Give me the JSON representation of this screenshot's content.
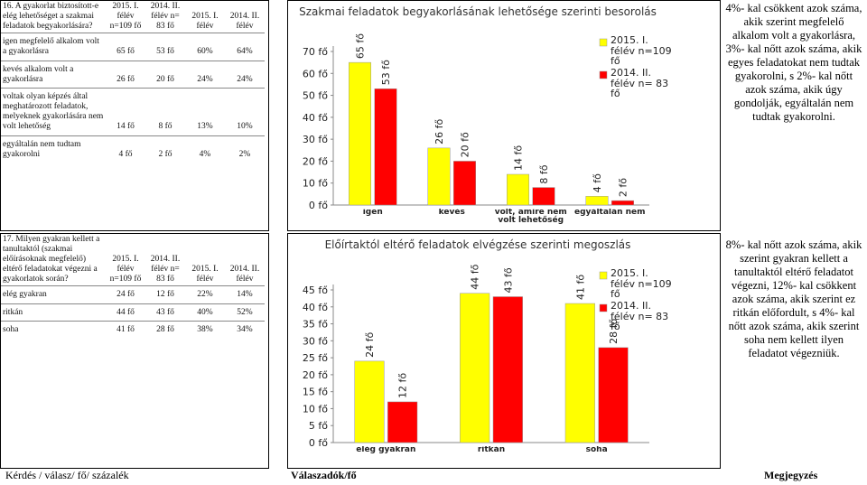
{
  "sections": [
    {
      "table": {
        "header": [
          "16. A gyakorlat biztosított-e elég lehetőséget a szakmai feladatok begyakorlására?",
          "2015. I. félév n=109 fő",
          "2014. II. félév n= 83 fő",
          "2015. I. félév",
          "2014. II. félév"
        ],
        "rows": [
          [
            "igen megfelelő alkalom volt a gyakorlásra",
            "65 fő",
            "53 fő",
            "60%",
            "64%"
          ],
          [
            "kevés alkalom volt a gyakorlásra",
            "26 fő",
            "20 fő",
            "24%",
            "24%"
          ],
          [
            "voltak olyan képzés által meghatározott feladatok, melyeknek gyakorlására nem volt lehetőség",
            "14 fő",
            "8 fő",
            "13%",
            "10%"
          ],
          [
            "egyáltalán nem tudtam gyakorolni",
            "4 fő",
            "2 fő",
            "4%",
            "2%"
          ]
        ]
      },
      "note": "4%- kal csökkent azok száma, akik szerint megfelelő alkalom volt a gyakorlásra, 3%- kal nőtt azok száma, akik egyes feladatokat nem tudtak gyakorolni, s 2%- kal nőtt azok száma, akik úgy gondolják, egyáltalán nem tudtak gyakorolni."
    },
    {
      "table": {
        "header": [
          "17. Milyen gyakran kellett a tanultaktól (szakmai előírásoknak megfelelő) eltérő feladatokat végezni a gyakorlatok során?",
          "2015. I. félév n=109 fő",
          "2014. II. félév n= 83 fő",
          "2015. I. félév",
          "2014. II. félév"
        ],
        "rows": [
          [
            "elég gyakran",
            "24 fő",
            "12 fő",
            "22%",
            "14%"
          ],
          [
            "ritkán",
            "44 fő",
            "43 fő",
            "40%",
            "52%"
          ],
          [
            "soha",
            "41 fő",
            "28 fő",
            "38%",
            "34%"
          ]
        ]
      },
      "note": "8%- kal nőtt azok száma, akik szerint gyakran kellett a tanultaktól eltérő feladatot végezni, 12%- kal csökkent azok száma, akik szerint ez ritkán előfordult, s 4%- kal nőtt azok száma, akik szerint soha nem kellett ilyen feladatot végezniük."
    }
  ],
  "chart_data": [
    {
      "type": "bar",
      "title": "Szakmai feladatok begyakorlásának lehetősége szerinti besorolás",
      "categories": [
        "igen",
        "kevés",
        "volt, amire nem volt lehetőség",
        "egyáltalán nem"
      ],
      "series": [
        {
          "name": "2015. I. félév n=109 fő",
          "color": "#ffff00",
          "values": [
            65,
            26,
            14,
            4
          ],
          "value_labels": [
            "65 fő",
            "26 fő",
            "14 fő",
            "4 fő"
          ]
        },
        {
          "name": "2014. II. félév n= 83 fő",
          "color": "#ff0000",
          "values": [
            53,
            20,
            8,
            2
          ],
          "value_labels": [
            "53 fő",
            "20 fő",
            "8 fő",
            "2 fő"
          ]
        }
      ],
      "ylim": [
        0,
        70
      ],
      "yticks": [
        {
          "value": 0,
          "label": "0 fő"
        },
        {
          "value": 10,
          "label": "10 fő"
        },
        {
          "value": 20,
          "label": "20 fő"
        },
        {
          "value": 30,
          "label": "30 fő"
        },
        {
          "value": 40,
          "label": "40 fő"
        },
        {
          "value": 50,
          "label": "50 fő"
        },
        {
          "value": 60,
          "label": "60 fő"
        },
        {
          "value": 70,
          "label": "70 fő"
        }
      ],
      "legend": "upper right"
    },
    {
      "type": "bar",
      "title": "Előírtaktól eltérő feladatok elvégzése szerinti megoszlás",
      "categories": [
        "elég gyakran",
        "ritkán",
        "soha"
      ],
      "series": [
        {
          "name": "2015. I. félév n=109 fő",
          "color": "#ffff00",
          "values": [
            24,
            44,
            41
          ],
          "value_labels": [
            "24 fő",
            "44 fő",
            "41 fő"
          ]
        },
        {
          "name": "2014. II. félév n= 83 fő",
          "color": "#ff0000",
          "values": [
            12,
            43,
            28
          ],
          "value_labels": [
            "12 fő",
            "43 fő",
            "28 fő"
          ]
        }
      ],
      "ylim": [
        0,
        45
      ],
      "yticks": [
        {
          "value": 0,
          "label": "0 fő"
        },
        {
          "value": 5,
          "label": "5 fő"
        },
        {
          "value": 10,
          "label": "10 fő"
        },
        {
          "value": 15,
          "label": "15 fő"
        },
        {
          "value": 20,
          "label": "20 fő"
        },
        {
          "value": 25,
          "label": "25 fő"
        },
        {
          "value": 30,
          "label": "30 fő"
        },
        {
          "value": 35,
          "label": "35 fő"
        },
        {
          "value": 40,
          "label": "40 fő"
        },
        {
          "value": 45,
          "label": "45 fő"
        }
      ],
      "legend": "upper right"
    }
  ],
  "footer": [
    "Kérdés / válasz/ fő/ százalék",
    "Válaszadók/fő",
    "Megjegyzés"
  ]
}
